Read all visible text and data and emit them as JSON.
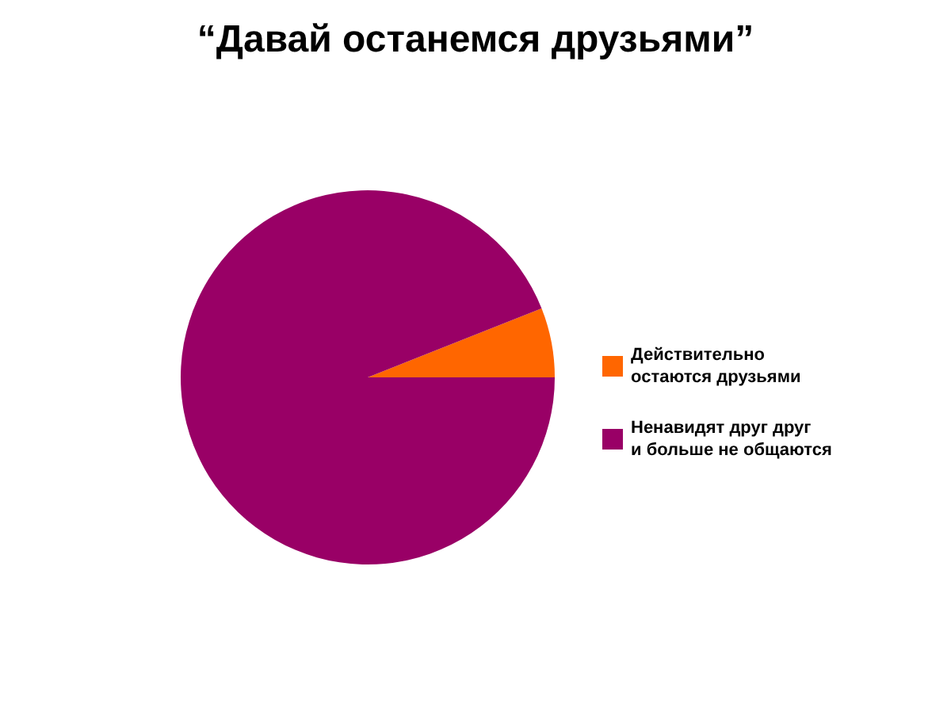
{
  "chart_data": {
    "type": "pie",
    "title": "“Давай останемся друзьями”",
    "categories": [
      "Действительно\nостаются друзьями",
      "Ненавидят друг друг\nи больше не общаются"
    ],
    "values": [
      6,
      94
    ],
    "colors": [
      "#ff6600",
      "#990066"
    ],
    "legend": "right"
  }
}
